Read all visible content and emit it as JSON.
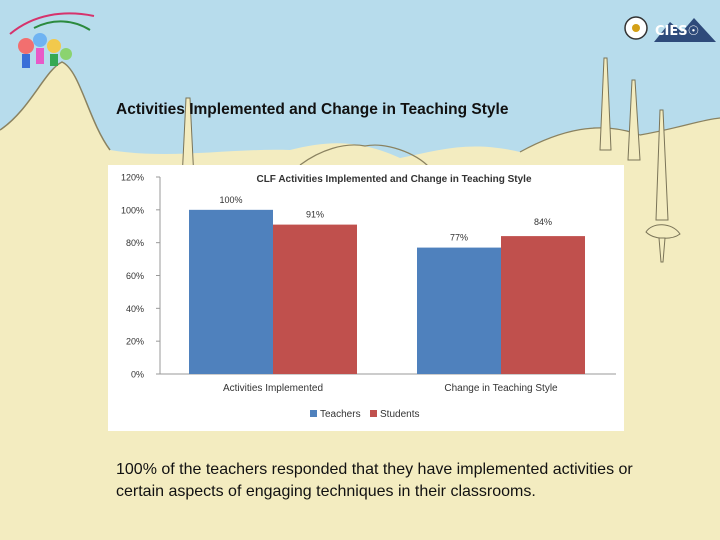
{
  "slide": {
    "title": "Activities Implemented and Change in Teaching Style",
    "caption": "100% of the teachers responded that they have implemented activities or certain aspects of engaging techniques in their classrooms.",
    "logo_right_text": "CIES☉"
  },
  "colors": {
    "sky": "#b7dcec",
    "land": "#f3ecc0",
    "teachers": "#4f81bd",
    "students": "#c0504d"
  },
  "chart_data": {
    "type": "bar",
    "title": "CLF Activities Implemented and Change in Teaching Style",
    "categories": [
      "Activities Implemented",
      "Change in Teaching Style"
    ],
    "series": [
      {
        "name": "Teachers",
        "values": [
          100,
          77
        ],
        "labels": [
          "100%",
          "77%"
        ],
        "color": "#4f81bd"
      },
      {
        "name": "Students",
        "values": [
          91,
          84
        ],
        "labels": [
          "91%",
          "84%"
        ],
        "color": "#c0504d"
      }
    ],
    "ylim": [
      0,
      120
    ],
    "yticks": [
      0,
      20,
      40,
      60,
      80,
      100,
      120
    ],
    "ytick_labels": [
      "0%",
      "20%",
      "40%",
      "60%",
      "80%",
      "100%",
      "120%"
    ],
    "xlabel": "",
    "ylabel": "",
    "grid": false,
    "legend": "bottom"
  }
}
